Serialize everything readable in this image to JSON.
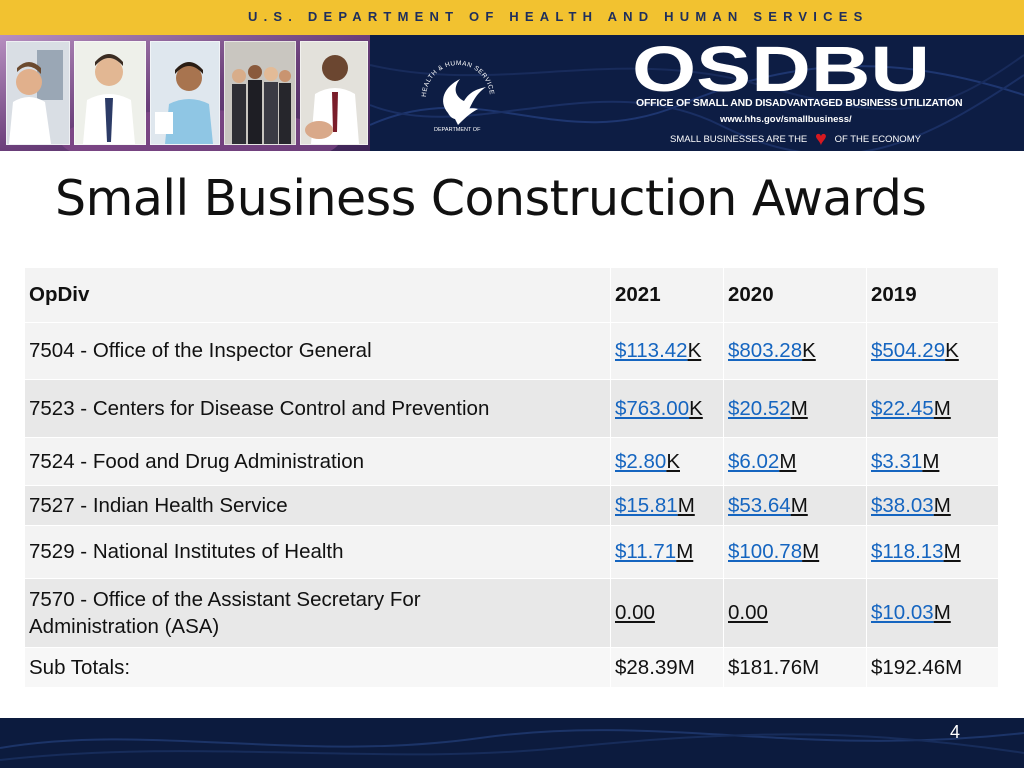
{
  "header": {
    "department": "U.S. DEPARTMENT OF HEALTH AND HUMAN SERVICES",
    "logo_text": "OSDBU",
    "logo_subtitle": "OFFICE OF SMALL AND DISADVANTAGED BUSINESS UTILIZATION",
    "url": "www.hhs.gov/smallbusiness/",
    "tagline_before": "SMALL BUSINESSES ARE THE",
    "tagline_after": "OF THE ECONOMY",
    "seal_text": "HEALTH & HUMAN SERVICES · USA · DEPARTMENT OF"
  },
  "slide": {
    "title": "Small Business Construction Awards",
    "page_number": "4"
  },
  "table": {
    "headers": [
      "OpDiv",
      "2021",
      "2020",
      "2019"
    ],
    "rows": [
      {
        "opdiv": "7504 - Office of the Inspector General",
        "cells": [
          {
            "amount": "$113.42",
            "unit": "K"
          },
          {
            "amount": "$803.28",
            "unit": "K"
          },
          {
            "amount": "$504.29",
            "unit": "K"
          }
        ]
      },
      {
        "opdiv": "7523 - Centers for Disease Control and Prevention",
        "cells": [
          {
            "amount": "$763.00",
            "unit": "K"
          },
          {
            "amount": "$20.52",
            "unit": "M"
          },
          {
            "amount": "$22.45",
            "unit": "M"
          }
        ]
      },
      {
        "opdiv": "7524 - Food and Drug Administration",
        "cells": [
          {
            "amount": "$2.80",
            "unit": "K"
          },
          {
            "amount": "$6.02",
            "unit": "M"
          },
          {
            "amount": "$3.31",
            "unit": "M"
          }
        ]
      },
      {
        "opdiv": "7527 - Indian Health Service",
        "cells": [
          {
            "amount": "$15.81",
            "unit": "M"
          },
          {
            "amount": "$53.64",
            "unit": "M"
          },
          {
            "amount": "$38.03",
            "unit": "M"
          }
        ]
      },
      {
        "opdiv": "7529 - National Institutes of Health",
        "cells": [
          {
            "amount": "$11.71",
            "unit": "M"
          },
          {
            "amount": "$100.78",
            "unit": "M"
          },
          {
            "amount": "$118.13",
            "unit": "M"
          }
        ]
      },
      {
        "opdiv_line1": "7570 - Office of the Assistant Secretary For",
        "opdiv_line2": "Administration (ASA)",
        "cells": [
          {
            "value": "0.00"
          },
          {
            "value": "0.00"
          },
          {
            "amount": "$10.03",
            "unit": "M"
          }
        ]
      }
    ],
    "subtotals": {
      "label": "Sub Totals:",
      "values": [
        "$28.39M",
        "$181.76M",
        "$192.46M"
      ]
    }
  },
  "colors": {
    "gold_bar": "#f2c230",
    "navy": "#0d1d44",
    "link_blue": "#1565c0",
    "heart_red": "#d71920"
  }
}
